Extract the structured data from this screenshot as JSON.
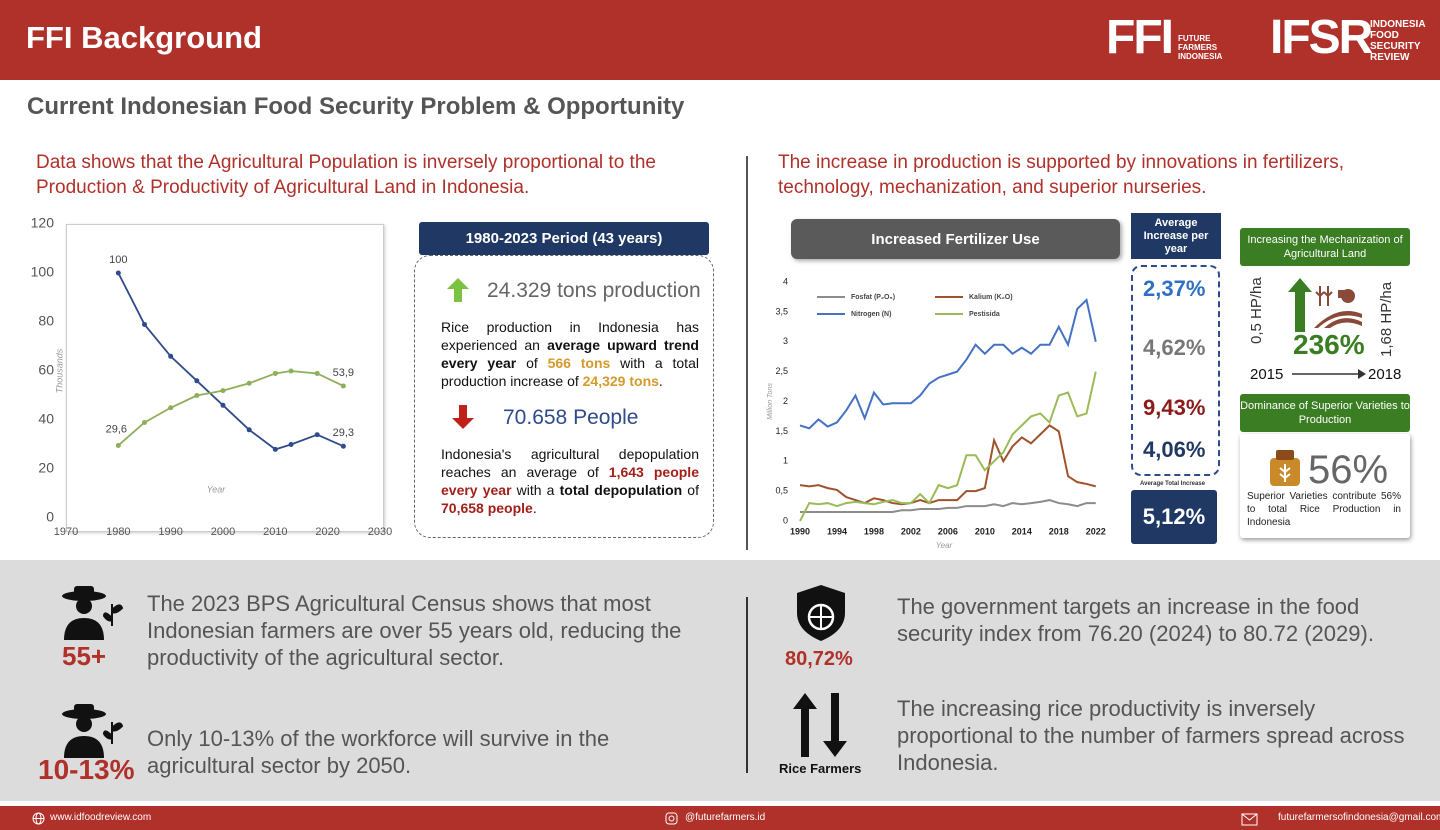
{
  "header": {
    "title": "FFI Background",
    "logo1": "FFI",
    "logo1_text": [
      "FUTURE",
      "FARMERS",
      "INDONESIA"
    ],
    "logo2": "IFSR",
    "logo2_text": [
      "INDONESIA",
      "FOOD",
      "SECURITY",
      "REVIEW"
    ]
  },
  "subtitle": "Current Indonesian Food Security Problem & Opportunity",
  "left": {
    "heading": "Data shows that the Agricultural Population is inversely proportional to the Production & Productivity of Agricultural Land in Indonesia.",
    "period": "1980-2023 Period (43 years)",
    "production_headline": "24.329 tons production",
    "production_text": [
      "Rice production in Indonesia has experienced an ",
      "average upward trend every year",
      " of ",
      "566 tons",
      " with a total production increase of ",
      "24,329 tons",
      "."
    ],
    "people_headline": "70.658 People",
    "people_text": [
      "Indonesia's agricultural depopulation reaches an average of ",
      "1,643 people",
      " ",
      "every year",
      " with a ",
      "total depopulation",
      " of ",
      "70,658 people",
      "."
    ]
  },
  "right": {
    "heading": "The increase in production is supported by innovations in fertilizers, technology, mechanization, and superior nurseries.",
    "fertilizer_title": "Increased Fertilizer Use",
    "avg_title": "Average Increase per year",
    "avg_values": [
      "2,37%",
      "4,62%",
      "9,43%",
      "4,06%"
    ],
    "total_title": "Average Total Increase",
    "total_value": "5,12%",
    "mech_title": "Increasing the Mechanization of Agricultural Land",
    "mech_from": "0,5 HP/ha",
    "mech_to": "1,68 HP/ha",
    "mech_pct": "236%",
    "mech_year_from": "2015",
    "mech_year_to": "2018",
    "variety_title": "Dominance of Superior Varieties to Production",
    "variety_pct": "56%",
    "variety_text": "Superior Varieties contribute 56% to total Rice Production in Indonesia"
  },
  "bottom": {
    "age_stat": "55+",
    "age_text": "The 2023 BPS Agricultural Census shows that most Indonesian farmers are over 55 years old, reducing the productivity of the agricultural sector.",
    "work_stat": "10-13%",
    "work_text": "Only 10-13% of the workforce will survive in the agricultural sector by 2050.",
    "index_stat": "80,72%",
    "index_text": "The government targets an increase in the food security index from 76.20 (2024) to 80.72 (2029).",
    "farmers_label": "Rice Farmers",
    "farmers_text": "The increasing rice productivity is inversely proportional to the number of farmers spread across Indonesia."
  },
  "footer": {
    "website": "www.idfoodreview.com",
    "social": "@futurefarmers.id",
    "email": "futurefarmersofindonesia@gmail.com"
  },
  "chart_data": [
    {
      "type": "line",
      "xlabel": "Year",
      "ylabel": "Thousands",
      "markers": true,
      "x": [
        1980,
        1985,
        1990,
        1995,
        2000,
        2005,
        2010,
        2013,
        2018,
        2023
      ],
      "xlim": [
        1970,
        2030
      ],
      "xticks": [
        1970,
        1980,
        1990,
        2000,
        2010,
        2020,
        2030
      ],
      "ylim": [
        0,
        120
      ],
      "yticks": [
        0,
        20,
        40,
        60,
        80,
        100,
        120
      ],
      "series": [
        {
          "color": "#2f4b8c",
          "values": [
            100,
            79,
            66,
            56,
            46,
            36,
            28,
            30,
            34,
            29.3
          ],
          "value_labels": [
            "100",
            null,
            null,
            null,
            null,
            null,
            null,
            null,
            null,
            "29,3"
          ]
        },
        {
          "color": "#8fae5a",
          "values": [
            29.6,
            39,
            45,
            50,
            52,
            55,
            59,
            60,
            59,
            53.9
          ],
          "value_labels": [
            "29,6",
            null,
            null,
            null,
            null,
            null,
            null,
            null,
            null,
            "53,9"
          ]
        }
      ]
    },
    {
      "type": "line",
      "xlabel": "Year",
      "ylabel": "Million Tons",
      "markers": false,
      "x": [
        1990,
        1991,
        1992,
        1993,
        1994,
        1995,
        1996,
        1997,
        1998,
        1999,
        2000,
        2001,
        2002,
        2003,
        2004,
        2005,
        2006,
        2007,
        2008,
        2009,
        2010,
        2011,
        2012,
        2013,
        2014,
        2015,
        2016,
        2017,
        2018,
        2019,
        2020,
        2021,
        2022
      ],
      "xlim": [
        1990,
        2023
      ],
      "xticks": [
        1990,
        1994,
        1998,
        2002,
        2006,
        2010,
        2014,
        2018,
        2022
      ],
      "ylim": [
        0,
        4
      ],
      "yticks": [
        0,
        {
          "value": 0.5,
          "label": "0,5"
        },
        1,
        {
          "value": 1.5,
          "label": "1,5"
        },
        2,
        {
          "value": 2.5,
          "label": "2,5"
        },
        3,
        {
          "value": 3.5,
          "label": "3,5"
        },
        4
      ],
      "series": [
        {
          "name": "Fosfat (P₂O₅)",
          "color": "#8c8c8c",
          "values": [
            0.15,
            0.15,
            0.15,
            0.15,
            0.15,
            0.15,
            0.15,
            0.15,
            0.15,
            0.15,
            0.15,
            0.18,
            0.18,
            0.2,
            0.2,
            0.2,
            0.22,
            0.22,
            0.25,
            0.25,
            0.25,
            0.28,
            0.25,
            0.3,
            0.28,
            0.3,
            0.32,
            0.35,
            0.3,
            0.28,
            0.25,
            0.3,
            0.3
          ]
        },
        {
          "name": "Kalium (K₂O)",
          "color": "#a0522d",
          "values": [
            0.6,
            0.58,
            0.6,
            0.55,
            0.52,
            0.4,
            0.35,
            0.3,
            0.38,
            0.35,
            0.3,
            0.28,
            0.3,
            0.35,
            0.3,
            0.35,
            0.35,
            0.35,
            0.5,
            0.5,
            0.55,
            1.35,
            1.0,
            1.25,
            1.4,
            1.3,
            1.45,
            1.6,
            1.5,
            0.75,
            0.65,
            0.62,
            0.58
          ]
        },
        {
          "name": "Nitrogen (N)",
          "color": "#4472c4",
          "values": [
            1.6,
            1.55,
            1.7,
            1.58,
            1.65,
            1.85,
            2.1,
            1.72,
            2.15,
            1.95,
            1.97,
            1.97,
            1.97,
            2.1,
            2.3,
            2.4,
            2.45,
            2.5,
            2.7,
            2.95,
            2.8,
            2.95,
            2.95,
            2.8,
            2.9,
            2.8,
            2.95,
            2.95,
            3.25,
            2.95,
            3.55,
            3.7,
            3.0
          ]
        },
        {
          "name": "Pestisida",
          "color": "#9bbb59",
          "values": [
            0,
            0.3,
            0.28,
            0.3,
            0.25,
            0.3,
            0.32,
            0.3,
            0.28,
            0.32,
            0.35,
            0.3,
            0.3,
            0.45,
            0.3,
            0.6,
            0.55,
            0.6,
            1.1,
            1.1,
            0.85,
            1.0,
            1.15,
            1.45,
            1.6,
            1.75,
            1.8,
            1.65,
            2.1,
            2.15,
            1.75,
            1.8,
            2.5
          ]
        }
      ]
    }
  ]
}
